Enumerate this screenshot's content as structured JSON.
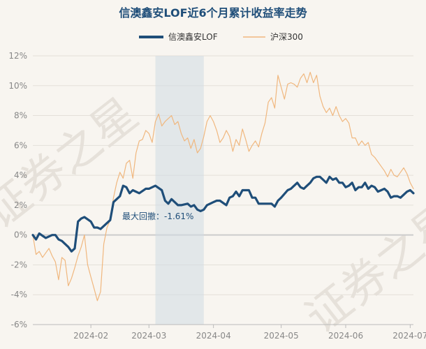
{
  "chart_data": {
    "type": "line",
    "title": "信澳鑫安LOF近6个月累计收益率走势",
    "xlabel": "",
    "ylabel": "",
    "ylim": [
      -6,
      12
    ],
    "yticks": [
      -6,
      -4,
      -2,
      0,
      2,
      4,
      6,
      8,
      10,
      12
    ],
    "ytick_labels": [
      "-6%",
      "-4%",
      "-2%",
      "0%",
      "2%",
      "4%",
      "6%",
      "8%",
      "10%",
      "12%"
    ],
    "xtick_labels": [
      "2024-02",
      "2024-03",
      "2024-04",
      "2024-05",
      "2024-06",
      "2024-07"
    ],
    "xtick_index": [
      18,
      36,
      56,
      77,
      97,
      117
    ],
    "n_points": 119,
    "legend_position": "top-center",
    "watermark": "证券之星",
    "annotation": {
      "text": "最大回撤：-1.61%",
      "drawdown_start_index": 38,
      "drawdown_end_index": 53,
      "drawdown_value": -1.61
    },
    "series": [
      {
        "name": "信澳鑫安LOF",
        "color": "#1f4e79",
        "keypoints": [
          [
            0,
            0.0
          ],
          [
            1,
            -0.3
          ],
          [
            2,
            0.1
          ],
          [
            4,
            -0.2
          ],
          [
            6,
            0.0
          ],
          [
            7,
            0.0
          ],
          [
            8,
            -0.3
          ],
          [
            9,
            -0.4
          ],
          [
            11,
            -0.8
          ],
          [
            12,
            -1.1
          ],
          [
            13,
            -0.9
          ],
          [
            14,
            0.9
          ],
          [
            15,
            1.1
          ],
          [
            16,
            1.2
          ],
          [
            18,
            0.9
          ],
          [
            19,
            0.5
          ],
          [
            20,
            0.5
          ],
          [
            21,
            0.4
          ],
          [
            23,
            0.8
          ],
          [
            24,
            1.0
          ],
          [
            25,
            2.2
          ],
          [
            26,
            2.4
          ],
          [
            27,
            2.6
          ],
          [
            28,
            3.3
          ],
          [
            29,
            3.2
          ],
          [
            30,
            2.8
          ],
          [
            31,
            3.0
          ],
          [
            33,
            2.8
          ],
          [
            35,
            3.1
          ],
          [
            36,
            3.1
          ],
          [
            38,
            3.3
          ],
          [
            40,
            3.0
          ],
          [
            41,
            2.3
          ],
          [
            42,
            2.1
          ],
          [
            43,
            2.4
          ],
          [
            44,
            2.2
          ],
          [
            45,
            2.0
          ],
          [
            46,
            2.0
          ],
          [
            48,
            2.1
          ],
          [
            49,
            1.9
          ],
          [
            50,
            2.0
          ],
          [
            51,
            1.7
          ],
          [
            52,
            1.6
          ],
          [
            53,
            1.7
          ],
          [
            54,
            2.0
          ],
          [
            56,
            2.2
          ],
          [
            57,
            2.3
          ],
          [
            58,
            2.3
          ],
          [
            60,
            2.0
          ],
          [
            61,
            2.5
          ],
          [
            62,
            2.6
          ],
          [
            63,
            2.9
          ],
          [
            64,
            2.6
          ],
          [
            65,
            3.0
          ],
          [
            67,
            3.0
          ],
          [
            68,
            2.5
          ],
          [
            69,
            2.5
          ],
          [
            70,
            2.1
          ],
          [
            72,
            2.1
          ],
          [
            74,
            2.1
          ],
          [
            75,
            1.9
          ],
          [
            76,
            2.3
          ],
          [
            77,
            2.5
          ],
          [
            79,
            3.0
          ],
          [
            80,
            3.1
          ],
          [
            82,
            3.5
          ],
          [
            83,
            3.2
          ],
          [
            84,
            3.1
          ],
          [
            85,
            3.3
          ],
          [
            86,
            3.5
          ],
          [
            87,
            3.8
          ],
          [
            88,
            3.9
          ],
          [
            89,
            3.9
          ],
          [
            90,
            3.7
          ],
          [
            91,
            3.5
          ],
          [
            92,
            3.9
          ],
          [
            93,
            3.7
          ],
          [
            94,
            3.8
          ],
          [
            95,
            3.5
          ],
          [
            96,
            3.5
          ],
          [
            97,
            3.2
          ],
          [
            98,
            3.3
          ],
          [
            99,
            3.5
          ],
          [
            100,
            3.0
          ],
          [
            101,
            3.2
          ],
          [
            102,
            3.2
          ],
          [
            103,
            3.5
          ],
          [
            104,
            3.1
          ],
          [
            105,
            3.3
          ],
          [
            106,
            3.2
          ],
          [
            107,
            2.9
          ],
          [
            108,
            3.0
          ],
          [
            109,
            3.1
          ],
          [
            110,
            2.9
          ],
          [
            111,
            2.5
          ],
          [
            112,
            2.6
          ],
          [
            113,
            2.6
          ],
          [
            114,
            2.5
          ],
          [
            115,
            2.7
          ],
          [
            116,
            2.9
          ],
          [
            117,
            3.0
          ],
          [
            118,
            2.8
          ]
        ]
      },
      {
        "name": "沪深300",
        "color": "#f0b77e",
        "keypoints": [
          [
            0,
            0.0
          ],
          [
            1,
            -1.3
          ],
          [
            2,
            -1.1
          ],
          [
            3,
            -1.5
          ],
          [
            4,
            -1.2
          ],
          [
            5,
            -0.9
          ],
          [
            6,
            -1.4
          ],
          [
            7,
            -1.8
          ],
          [
            8,
            -3.0
          ],
          [
            9,
            -1.5
          ],
          [
            10,
            -1.7
          ],
          [
            11,
            -3.4
          ],
          [
            12,
            -2.9
          ],
          [
            13,
            -2.2
          ],
          [
            14,
            -1.4
          ],
          [
            15,
            -0.8
          ],
          [
            16,
            0.0
          ],
          [
            17,
            -2.0
          ],
          [
            18,
            -2.8
          ],
          [
            19,
            -3.6
          ],
          [
            20,
            -4.4
          ],
          [
            21,
            -3.8
          ],
          [
            22,
            -0.6
          ],
          [
            23,
            0.5
          ],
          [
            24,
            1.0
          ],
          [
            25,
            2.5
          ],
          [
            26,
            3.5
          ],
          [
            27,
            4.2
          ],
          [
            28,
            3.8
          ],
          [
            29,
            4.8
          ],
          [
            30,
            5.0
          ],
          [
            31,
            3.8
          ],
          [
            32,
            5.5
          ],
          [
            33,
            6.3
          ],
          [
            34,
            6.4
          ],
          [
            35,
            7.0
          ],
          [
            36,
            6.8
          ],
          [
            37,
            6.2
          ],
          [
            38,
            7.6
          ],
          [
            39,
            8.1
          ],
          [
            40,
            7.3
          ],
          [
            41,
            7.6
          ],
          [
            42,
            7.8
          ],
          [
            43,
            8.0
          ],
          [
            44,
            7.4
          ],
          [
            45,
            7.6
          ],
          [
            46,
            6.8
          ],
          [
            47,
            6.3
          ],
          [
            48,
            6.5
          ],
          [
            49,
            5.8
          ],
          [
            50,
            6.4
          ],
          [
            51,
            5.5
          ],
          [
            52,
            5.8
          ],
          [
            53,
            6.6
          ],
          [
            54,
            7.6
          ],
          [
            55,
            8.0
          ],
          [
            56,
            7.6
          ],
          [
            57,
            7.0
          ],
          [
            58,
            6.2
          ],
          [
            59,
            6.5
          ],
          [
            60,
            7.0
          ],
          [
            61,
            6.6
          ],
          [
            62,
            5.6
          ],
          [
            63,
            6.4
          ],
          [
            64,
            6.0
          ],
          [
            65,
            7.1
          ],
          [
            66,
            6.4
          ],
          [
            67,
            5.6
          ],
          [
            68,
            6.0
          ],
          [
            69,
            6.3
          ],
          [
            70,
            5.9
          ],
          [
            71,
            6.8
          ],
          [
            72,
            7.5
          ],
          [
            73,
            8.9
          ],
          [
            74,
            9.2
          ],
          [
            75,
            8.5
          ],
          [
            76,
            10.7
          ],
          [
            77,
            9.9
          ],
          [
            78,
            9.1
          ],
          [
            79,
            10.1
          ],
          [
            80,
            10.2
          ],
          [
            81,
            10.1
          ],
          [
            82,
            9.9
          ],
          [
            83,
            10.5
          ],
          [
            84,
            10.8
          ],
          [
            85,
            10.2
          ],
          [
            86,
            10.9
          ],
          [
            87,
            10.2
          ],
          [
            88,
            10.7
          ],
          [
            89,
            9.3
          ],
          [
            90,
            8.6
          ],
          [
            91,
            8.2
          ],
          [
            92,
            8.5
          ],
          [
            93,
            8.0
          ],
          [
            94,
            8.6
          ],
          [
            95,
            8.0
          ],
          [
            96,
            7.6
          ],
          [
            97,
            7.8
          ],
          [
            98,
            7.5
          ],
          [
            99,
            6.5
          ],
          [
            100,
            6.5
          ],
          [
            101,
            6.0
          ],
          [
            102,
            6.3
          ],
          [
            103,
            6.0
          ],
          [
            104,
            6.2
          ],
          [
            105,
            5.4
          ],
          [
            106,
            5.2
          ],
          [
            107,
            4.9
          ],
          [
            108,
            4.6
          ],
          [
            109,
            4.3
          ],
          [
            110,
            3.9
          ],
          [
            111,
            4.4
          ],
          [
            112,
            4.0
          ],
          [
            113,
            3.9
          ],
          [
            114,
            4.2
          ],
          [
            115,
            4.5
          ],
          [
            116,
            4.1
          ],
          [
            117,
            3.5
          ],
          [
            118,
            3.1
          ]
        ]
      }
    ]
  }
}
